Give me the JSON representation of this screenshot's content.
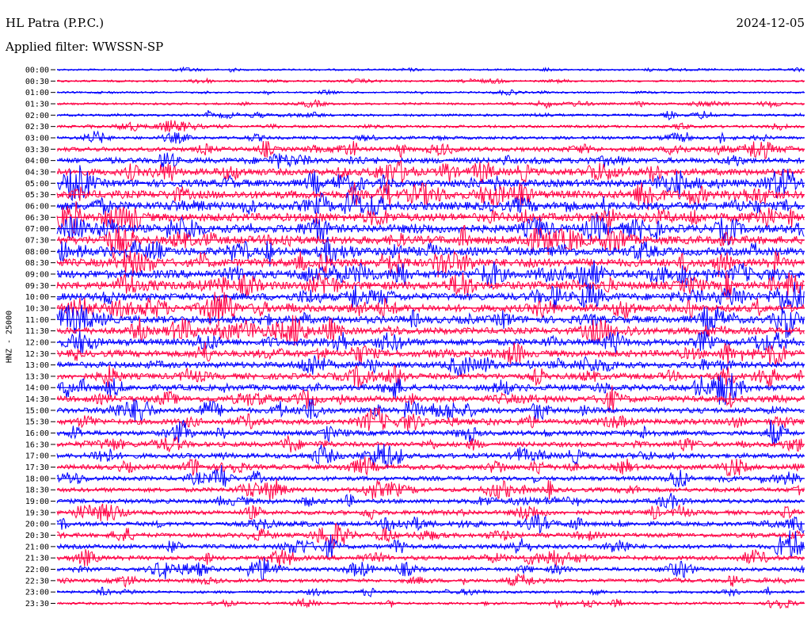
{
  "header": {
    "station": "HL Patra (P.P.C.)",
    "date": "2024-12-05",
    "filter": "Applied filter: WWSSN-SP"
  },
  "chart_data": {
    "type": "helicorder",
    "ylabel": "HNZ - 25000",
    "row_labels": [
      "00:00",
      "00:30",
      "01:00",
      "01:30",
      "02:00",
      "02:30",
      "03:00",
      "03:30",
      "04:00",
      "04:30",
      "05:00",
      "05:30",
      "06:00",
      "06:30",
      "07:00",
      "07:30",
      "08:00",
      "08:30",
      "09:00",
      "09:30",
      "10:00",
      "10:30",
      "11:00",
      "11:30",
      "12:00",
      "12:30",
      "13:00",
      "13:30",
      "14:00",
      "14:30",
      "15:00",
      "15:30",
      "16:00",
      "16:30",
      "17:00",
      "17:30",
      "18:00",
      "18:30",
      "19:00",
      "19:30",
      "20:00",
      "20:30",
      "21:00",
      "21:30",
      "22:00",
      "22:30",
      "23:00",
      "23:30"
    ],
    "colors": [
      "#0000ff",
      "#ff0044"
    ],
    "activity_level": [
      0.15,
      0.2,
      0.15,
      0.25,
      0.3,
      0.35,
      0.4,
      0.55,
      0.65,
      0.75,
      0.8,
      0.85,
      0.85,
      0.85,
      0.85,
      0.85,
      0.85,
      0.85,
      0.85,
      0.85,
      0.8,
      0.8,
      0.8,
      0.75,
      0.75,
      0.75,
      0.7,
      0.7,
      0.7,
      0.7,
      0.65,
      0.65,
      0.6,
      0.6,
      0.6,
      0.6,
      0.55,
      0.55,
      0.55,
      0.55,
      0.55,
      0.55,
      0.55,
      0.55,
      0.5,
      0.45,
      0.35,
      0.3
    ]
  }
}
